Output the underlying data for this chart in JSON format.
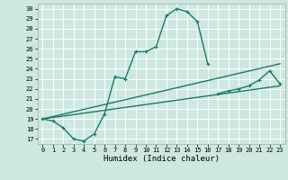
{
  "xlabel": "Humidex (Indice chaleur)",
  "bg_color": "#cce8e0",
  "grid_color": "#ffffff",
  "line_color": "#1a7a6a",
  "xlim": [
    -0.5,
    23.5
  ],
  "ylim": [
    16.5,
    30.5
  ],
  "yticks": [
    17,
    18,
    19,
    20,
    21,
    22,
    23,
    24,
    25,
    26,
    27,
    28,
    29,
    30
  ],
  "xticks": [
    0,
    1,
    2,
    3,
    4,
    5,
    6,
    7,
    8,
    9,
    10,
    11,
    12,
    13,
    14,
    15,
    16,
    17,
    18,
    19,
    20,
    21,
    22,
    23
  ],
  "curve1_x": [
    0,
    1,
    2,
    3,
    4,
    5,
    6,
    7,
    8,
    9,
    10,
    11,
    12,
    13,
    14,
    15,
    16
  ],
  "curve1_y": [
    19.0,
    18.8,
    18.1,
    17.0,
    16.8,
    17.5,
    19.5,
    23.2,
    23.0,
    25.7,
    25.7,
    26.2,
    29.3,
    30.0,
    29.7,
    28.7,
    24.5
  ],
  "curve2_x": [
    17,
    18,
    19,
    20,
    21,
    22,
    23
  ],
  "curve2_y": [
    21.5,
    21.8,
    22.0,
    22.3,
    22.9,
    23.8,
    22.5
  ],
  "line1_x": [
    0,
    23
  ],
  "line1_y": [
    19.0,
    24.5
  ],
  "line2_x": [
    0,
    23
  ],
  "line2_y": [
    19.0,
    22.3
  ]
}
